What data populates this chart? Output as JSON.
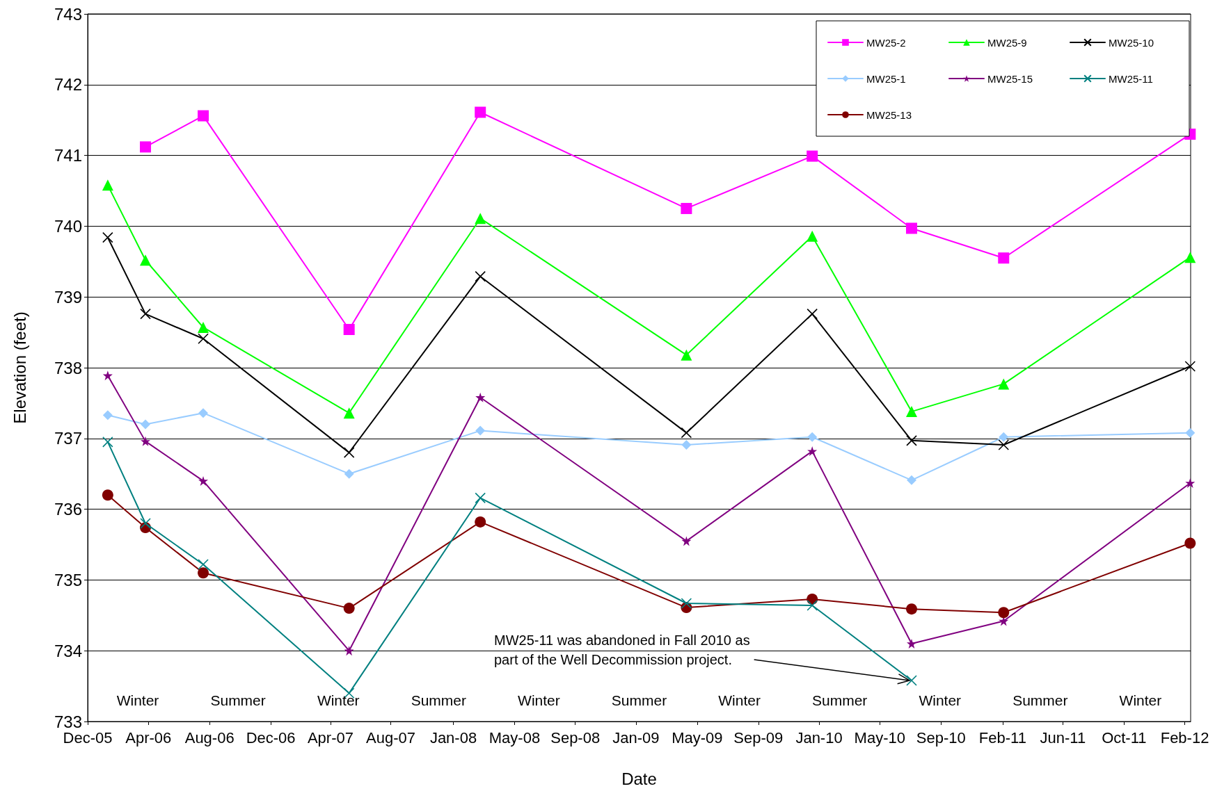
{
  "chart_data": {
    "type": "line",
    "xlabel": "Date",
    "ylabel": "Elevation (feet)",
    "x": [
      "2006-01-30",
      "2006-04-17",
      "2006-08-13",
      "2007-06-07",
      "2008-03-01",
      "2009-04-26",
      "2010-01-08",
      "2010-07-30",
      "2011-02-03",
      "2012-02-19"
    ],
    "series": [
      {
        "name": "MW25-2",
        "color": "#ff00ff",
        "marker": "square",
        "values": [
          null,
          741.12,
          741.56,
          738.54,
          741.61,
          740.25,
          740.99,
          739.97,
          739.55,
          741.3
        ]
      },
      {
        "name": "MW25-9",
        "color": "#00ff00",
        "marker": "triangle",
        "values": [
          740.58,
          739.52,
          738.57,
          737.36,
          740.11,
          738.18,
          739.86,
          737.38,
          737.77,
          739.56
        ]
      },
      {
        "name": "MW25-10",
        "color": "#000000",
        "marker": "cross",
        "values": [
          739.84,
          738.76,
          738.41,
          736.8,
          739.29,
          737.08,
          738.76,
          736.97,
          736.91,
          738.02
        ]
      },
      {
        "name": "MW25-1",
        "color": "#99ccff",
        "marker": "diamond",
        "values": [
          737.33,
          737.2,
          737.36,
          736.5,
          737.11,
          736.91,
          737.02,
          736.41,
          737.02,
          737.08
        ]
      },
      {
        "name": "MW25-15",
        "color": "#800080",
        "marker": "star",
        "values": [
          737.89,
          736.96,
          736.4,
          734.0,
          737.58,
          735.55,
          736.82,
          734.1,
          734.42,
          736.37
        ]
      },
      {
        "name": "MW25-11",
        "color": "#008080",
        "marker": "cross",
        "values": [
          736.95,
          735.8,
          735.22,
          733.4,
          736.16,
          734.67,
          734.64,
          733.58,
          null,
          null
        ]
      },
      {
        "name": "MW25-13",
        "color": "#800000",
        "marker": "circle",
        "values": [
          736.2,
          735.74,
          735.1,
          734.6,
          735.82,
          734.61,
          734.73,
          734.59,
          734.54,
          735.52
        ]
      }
    ],
    "xlim": [
      "2005-12-20",
      "2012-02-20"
    ],
    "xticks": [
      {
        "value": "2005-12-20",
        "label": "Dec-05"
      },
      {
        "value": "2006-04-23",
        "label": "Apr-06"
      },
      {
        "value": "2006-08-26",
        "label": "Aug-06"
      },
      {
        "value": "2006-12-29",
        "label": "Dec-06"
      },
      {
        "value": "2007-04-30",
        "label": "Apr-07"
      },
      {
        "value": "2007-08-31",
        "label": "Aug-07"
      },
      {
        "value": "2008-01-06",
        "label": "Jan-08"
      },
      {
        "value": "2008-05-10",
        "label": "May-08"
      },
      {
        "value": "2008-09-11",
        "label": "Sep-08"
      },
      {
        "value": "2009-01-13",
        "label": "Jan-09"
      },
      {
        "value": "2009-05-18",
        "label": "May-09"
      },
      {
        "value": "2009-09-20",
        "label": "Sep-09"
      },
      {
        "value": "2010-01-22",
        "label": "Jan-10"
      },
      {
        "value": "2010-05-26",
        "label": "May-10"
      },
      {
        "value": "2010-09-28",
        "label": "Sep-10"
      },
      {
        "value": "2011-02-01",
        "label": "Feb-11"
      },
      {
        "value": "2011-06-04",
        "label": "Jun-11"
      },
      {
        "value": "2011-10-07",
        "label": "Oct-11"
      },
      {
        "value": "2012-02-08",
        "label": "Feb-12"
      }
    ],
    "ylim": [
      733,
      743
    ],
    "yticks": [
      733,
      734,
      735,
      736,
      737,
      738,
      739,
      740,
      741,
      742,
      743
    ],
    "grid": "y",
    "legend": "top right",
    "line_style": "solid",
    "annotations": [
      {
        "text": "MW25-11 was abandoned in Fall 2010 as\npart of the Well Decommission project.",
        "x": "2010-07-30",
        "y": 733.58
      },
      "Winter",
      "Summer",
      "Winter",
      "Summer",
      "Winter",
      "Summer",
      "Winter",
      "Summer",
      "Winter",
      "Summer",
      "Winter"
    ]
  }
}
